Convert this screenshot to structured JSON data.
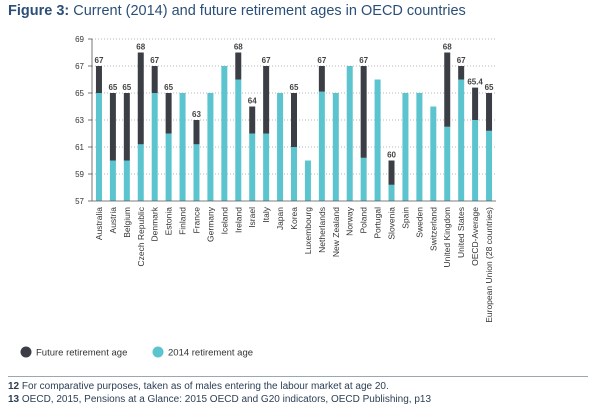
{
  "header": {
    "figure_label": "Figure 3:",
    "title_text": " Current (2014)  and future retirement ages in OECD countries"
  },
  "footnotes": [
    {
      "num": "12",
      "text": " For comparative purposes, taken as of males entering the labour market at age 20."
    },
    {
      "num": "13",
      "text": " OECD, 2015, Pensions at a Glance: 2015 OECD and G20 indicators, OECD Publishing, p13"
    }
  ],
  "colors": {
    "future": "#3b3f45",
    "current": "#5bc4cf",
    "title": "#2b4f78",
    "grid": "#9aa0a6"
  },
  "chart_data": {
    "type": "bar",
    "title": "Current (2014)  and future retirement ages in OECD countries",
    "xlabel": "",
    "ylabel": "",
    "ylim": [
      57,
      69
    ],
    "yticks": [
      57,
      59,
      61,
      63,
      65,
      67,
      69
    ],
    "grid": true,
    "legend_placement": "bottom-left",
    "categories": [
      "Australia",
      "Austria",
      "Belgium",
      "Czech Republic",
      "Denmark",
      "Estonia",
      "Finland",
      "France",
      "Germany",
      "Iceland",
      "Ireland",
      "Israel",
      "Italy",
      "Japan",
      "Korea",
      "Luxembourg",
      "Netherlands",
      "New Zealand",
      "Norway",
      "Poland",
      "Portugal",
      "Slovenia",
      "Spain",
      "Sweden",
      "Switzerland",
      "United Kingdom",
      "United States",
      "OECD-Average",
      "European Union (28 countries)"
    ],
    "series": [
      {
        "name": "Future retirement age",
        "values": [
          67,
          65,
          65,
          68,
          67,
          65,
          65,
          63,
          65,
          67,
          68,
          64,
          67,
          65,
          65,
          60,
          67,
          65,
          67,
          67,
          66,
          60,
          65,
          65,
          64,
          68,
          67,
          65.4,
          65
        ],
        "labels": [
          "67",
          "65",
          "65",
          "68",
          "67",
          "65",
          "",
          "63",
          "",
          "",
          "68",
          "64",
          "67",
          "",
          "65",
          "",
          "67",
          "",
          "",
          "67",
          "",
          "60",
          "",
          "",
          "",
          "68",
          "67",
          "65.4",
          "65"
        ]
      },
      {
        "name": "2014 retirement age",
        "values": [
          65,
          60,
          60,
          61.2,
          65,
          62,
          65,
          61.2,
          65,
          67,
          66,
          62,
          62,
          65,
          61,
          60,
          65.1,
          65,
          67,
          60.2,
          66,
          58.2,
          65,
          65,
          64,
          62.5,
          66,
          63,
          62.2
        ]
      }
    ]
  }
}
